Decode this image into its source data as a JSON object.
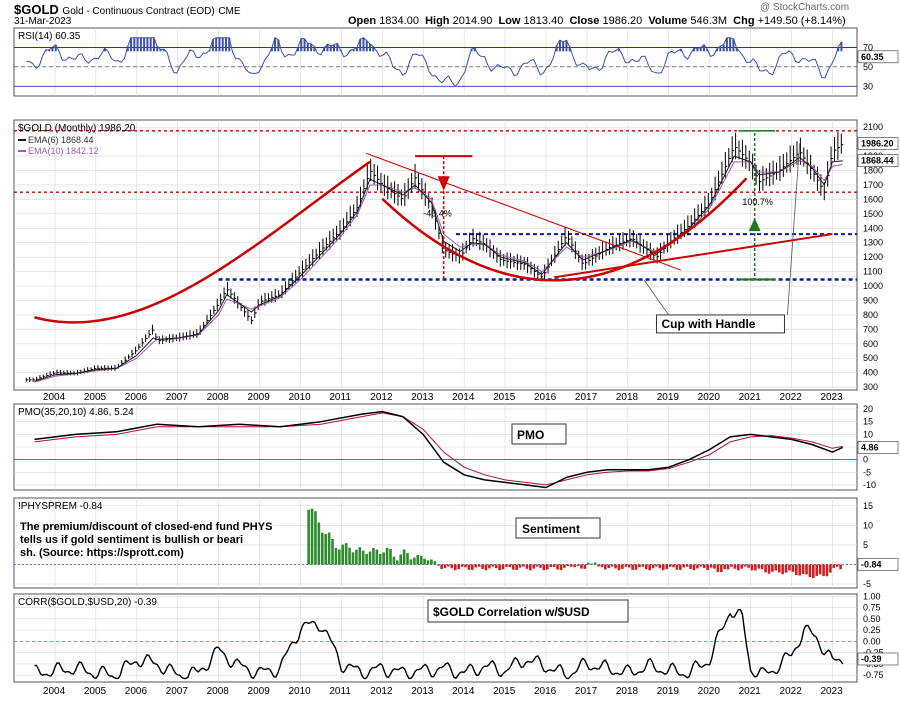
{
  "header": {
    "symbol": "$GOLD",
    "name": "Gold - Continuous Contract (EOD)",
    "exchange": "CME",
    "date": "31-Mar-2023",
    "watermark": "@ StockCharts.com",
    "open_label": "Open",
    "open": "1834.00",
    "high_label": "High",
    "high": "2014.90",
    "low_label": "Low",
    "low": "1813.40",
    "close_label": "Close",
    "close": "1986.20",
    "volume_label": "Volume",
    "volume": "546.3M",
    "chg_label": "Chg",
    "chg": "+149.50 (+8.14%)"
  },
  "colors": {
    "price_bar": "#000000",
    "ema6": "#1a1a1a",
    "ema10": "#9b5fb0",
    "support_red": "#cc0000",
    "support_blue": "#0a1aa0",
    "rsi_fill": "#3b4fa8",
    "pmo_signal": "#b0103a",
    "sentiment_up": "#2e8b2e",
    "sentiment_down": "#cc2222",
    "grid": "#d8d8d8"
  },
  "chart_data": [
    {
      "type": "line",
      "panel": "rsi",
      "title": "RSI(14) 60.35",
      "y_ticks": [
        "70",
        "50",
        "30"
      ],
      "ylim": [
        20,
        90
      ],
      "current_label": "60.35",
      "overbought": 70,
      "oversold": 30
    },
    {
      "type": "line",
      "panel": "price",
      "title": "$GOLD (Monthly) 1986.20",
      "series": [
        {
          "name": "EMA(6) 1868.44",
          "last": 1868.44
        },
        {
          "name": "EMA(10) 1842.12",
          "last": 1842.12
        }
      ],
      "x_ticks": [
        "2004",
        "2005",
        "2006",
        "2007",
        "2008",
        "2009",
        "2010",
        "2011",
        "2012",
        "2013",
        "2014",
        "2015",
        "2016",
        "2017",
        "2018",
        "2019",
        "2020",
        "2021",
        "2022",
        "2023"
      ],
      "y_ticks": [
        "2100",
        "1900",
        "1800",
        "1700",
        "1600",
        "1500",
        "1400",
        "1300",
        "1200",
        "1100",
        "1000",
        "900",
        "800",
        "700",
        "600",
        "500",
        "400",
        "300"
      ],
      "ylim": [
        280,
        2150
      ],
      "last_close_label": "1986.20",
      "ema_label": "1868.44",
      "x": [
        2003.5,
        2004.0,
        2004.5,
        2005.0,
        2005.5,
        2006.0,
        2006.4,
        2006.5,
        2007.0,
        2007.5,
        2008.0,
        2008.2,
        2008.8,
        2009.0,
        2009.5,
        2010.0,
        2010.5,
        2011.0,
        2011.4,
        2011.7,
        2012.0,
        2012.5,
        2012.8,
        2013.2,
        2013.5,
        2013.9,
        2014.2,
        2014.5,
        2014.9,
        2015.5,
        2015.9,
        2016.5,
        2016.9,
        2017.5,
        2018.1,
        2018.7,
        2019.0,
        2019.5,
        2020.0,
        2020.6,
        2021.0,
        2021.2,
        2021.7,
        2022.2,
        2022.5,
        2022.8,
        2023.0,
        2023.25
      ],
      "values": [
        350,
        400,
        395,
        430,
        430,
        560,
        700,
        620,
        640,
        670,
        880,
        980,
        760,
        890,
        940,
        1100,
        1250,
        1390,
        1550,
        1800,
        1700,
        1600,
        1750,
        1550,
        1250,
        1200,
        1330,
        1290,
        1180,
        1150,
        1060,
        1350,
        1150,
        1260,
        1330,
        1200,
        1300,
        1420,
        1580,
        1970,
        1850,
        1720,
        1800,
        1930,
        1800,
        1650,
        1930,
        1986
      ],
      "ema6": [
        340,
        385,
        395,
        420,
        430,
        520,
        640,
        630,
        640,
        665,
        830,
        940,
        820,
        870,
        930,
        1070,
        1220,
        1370,
        1520,
        1740,
        1700,
        1630,
        1700,
        1580,
        1310,
        1240,
        1300,
        1290,
        1200,
        1160,
        1080,
        1300,
        1180,
        1250,
        1320,
        1220,
        1290,
        1400,
        1560,
        1900,
        1860,
        1770,
        1790,
        1890,
        1820,
        1700,
        1860,
        1868
      ],
      "ema10": [
        335,
        375,
        393,
        412,
        428,
        500,
        610,
        630,
        638,
        660,
        800,
        910,
        840,
        862,
        920,
        1045,
        1195,
        1350,
        1500,
        1700,
        1700,
        1650,
        1680,
        1600,
        1360,
        1270,
        1290,
        1290,
        1215,
        1170,
        1100,
        1270,
        1200,
        1245,
        1310,
        1235,
        1280,
        1380,
        1540,
        1860,
        1860,
        1790,
        1790,
        1870,
        1830,
        1730,
        1830,
        1842
      ],
      "annotations": [
        "-46.4%",
        "100.7%",
        "Cup with Handle"
      ],
      "horizontal_levels": [
        2075,
        1650,
        1360,
        1045
      ]
    },
    {
      "type": "line",
      "panel": "pmo",
      "title": "PMO(35,20,10) 4.86, 5.24",
      "label": "PMO",
      "y_ticks": [
        "20",
        "15",
        "10",
        "5",
        "0",
        "-5",
        "-10"
      ],
      "ylim": [
        -12,
        22
      ],
      "current_label": "4.86",
      "x": [
        2003.5,
        2004.5,
        2005.5,
        2006.5,
        2007.5,
        2008.5,
        2009.5,
        2010.5,
        2011.5,
        2012.0,
        2012.5,
        2013.0,
        2013.5,
        2014.0,
        2014.5,
        2015.0,
        2015.5,
        2016.0,
        2016.5,
        2017.0,
        2017.5,
        2018.0,
        2018.5,
        2019.0,
        2019.5,
        2020.0,
        2020.5,
        2021.0,
        2021.5,
        2022.0,
        2022.5,
        2023.0,
        2023.25
      ],
      "values": [
        8,
        10,
        11,
        14,
        13,
        14,
        13,
        15,
        18,
        19,
        17,
        10,
        -1,
        -6,
        -8,
        -9,
        -10,
        -11,
        -7,
        -5,
        -4,
        -4,
        -4,
        -3,
        0,
        4,
        9,
        10,
        9,
        8,
        6,
        3,
        4.86
      ],
      "signal": [
        7,
        9,
        10,
        13,
        13,
        13,
        13,
        14,
        17,
        18.5,
        17,
        12,
        3,
        -3,
        -6,
        -8,
        -9,
        -10,
        -8,
        -6,
        -5,
        -4.5,
        -4.5,
        -3.5,
        -1,
        2,
        7,
        9,
        9.5,
        8.5,
        7,
        4.5,
        5.24
      ]
    },
    {
      "type": "bar",
      "panel": "sentiment",
      "title": "!PHYSPREM -0.84",
      "label": "Sentiment",
      "note": "The premium/discount of closed-end fund PHYS tells us if gold sentiment is bullish or bearish. (Source: https://sprott.com)",
      "y_ticks": [
        "15",
        "10",
        "5",
        "0",
        "-5"
      ],
      "ylim": [
        -6,
        17
      ],
      "current_label": "-0.84",
      "x": [
        2010.2,
        2010.4,
        2010.6,
        2010.8,
        2011.0,
        2011.2,
        2011.4,
        2011.6,
        2011.8,
        2012.0,
        2012.2,
        2012.4,
        2012.6,
        2012.8,
        2013.0,
        2013.2,
        2013.5,
        2014.0,
        2014.5,
        2015.0,
        2015.5,
        2016.0,
        2016.5,
        2017.0,
        2017.5,
        2018.0,
        2018.5,
        2019.0,
        2019.5,
        2020.0,
        2020.3,
        2020.6,
        2021.0,
        2021.5,
        2022.0,
        2022.4,
        2022.8,
        2023.1
      ],
      "values": [
        15,
        12,
        8,
        6,
        4,
        5,
        3,
        4,
        3,
        4,
        3,
        2,
        3,
        2,
        2,
        1,
        -1,
        -1,
        -1,
        -1,
        -1,
        -1,
        -1,
        1,
        -1,
        -1,
        -1,
        -1,
        -1,
        -1,
        3,
        -1,
        -1,
        -2,
        -2,
        -3,
        -3,
        -0.84
      ]
    },
    {
      "type": "line",
      "panel": "correlation",
      "title": "CORR($GOLD,$USD,20) -0.39",
      "label": "$GOLD Correlation w/$USD",
      "y_ticks": [
        "1.00",
        "0.75",
        "0.50",
        "0.25",
        "0.00",
        "-0.25",
        "-0.50",
        "-0.75"
      ],
      "ylim": [
        -0.9,
        1.05
      ],
      "current_label": "-0.39",
      "x": [
        2003.5,
        2004.0,
        2004.5,
        2005.0,
        2005.5,
        2006.0,
        2006.5,
        2007.0,
        2007.5,
        2008.0,
        2008.5,
        2009.0,
        2009.5,
        2010.0,
        2010.5,
        2011.0,
        2011.5,
        2012.0,
        2012.5,
        2013.0,
        2013.5,
        2014.0,
        2014.5,
        2015.0,
        2015.5,
        2016.0,
        2016.5,
        2017.0,
        2017.5,
        2018.0,
        2018.5,
        2019.0,
        2019.5,
        2020.0,
        2020.5,
        2020.8,
        2021.0,
        2021.3,
        2021.6,
        2022.0,
        2022.3,
        2022.6,
        2023.0,
        2023.25
      ],
      "values": [
        -0.7,
        -0.65,
        -0.6,
        -0.7,
        -0.75,
        -0.4,
        -0.5,
        -0.75,
        -0.7,
        -0.2,
        -0.55,
        -0.7,
        -0.6,
        0.3,
        0.4,
        -0.5,
        -0.7,
        -0.6,
        -0.7,
        -0.65,
        -0.6,
        -0.7,
        -0.55,
        -0.65,
        -0.4,
        -0.55,
        -0.75,
        -0.5,
        -0.6,
        -0.7,
        -0.55,
        -0.65,
        -0.7,
        -0.4,
        0.7,
        0.5,
        -0.6,
        -0.75,
        -0.6,
        -0.3,
        0.25,
        0.1,
        -0.45,
        -0.39
      ]
    }
  ]
}
